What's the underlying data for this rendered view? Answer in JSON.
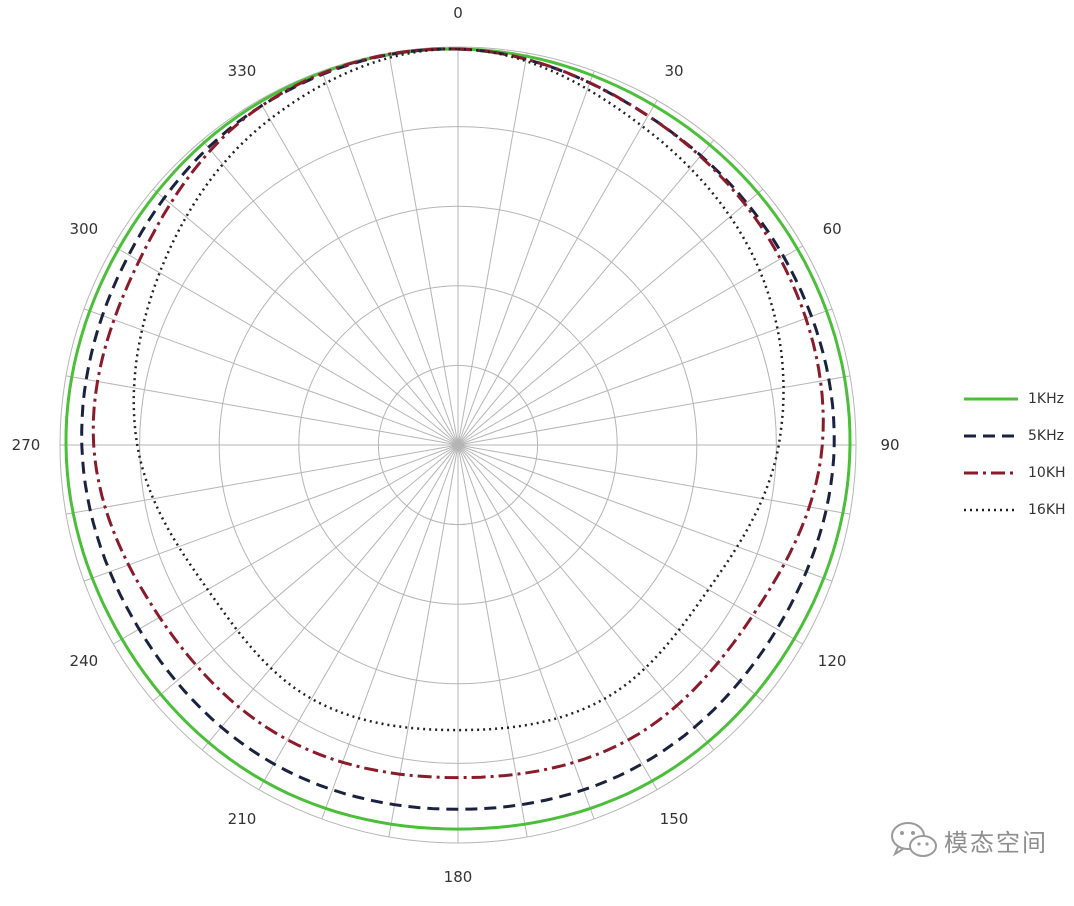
{
  "chart_data": {
    "type": "polar",
    "angle_ticks": [
      "0",
      "30",
      "60",
      "90",
      "120",
      "150",
      "180",
      "210",
      "240",
      "270",
      "300",
      "330"
    ],
    "angle_tick_values": [
      0,
      30,
      60,
      90,
      120,
      150,
      180,
      210,
      240,
      270,
      300,
      330
    ],
    "angle_step_grid": 10,
    "radial_rings": 5,
    "radial_range": [
      0,
      1
    ],
    "direction": "clockwise",
    "zero_at": "top",
    "grid": true,
    "legend_position": "right",
    "series": [
      {
        "name": "1KHz",
        "color": "#4cbf3a",
        "style": "solid",
        "angles": [
          0,
          30,
          60,
          90,
          120,
          150,
          180,
          210,
          240,
          270,
          300,
          330
        ],
        "r": [
          1.0,
          0.99,
          0.99,
          0.99,
          0.98,
          0.98,
          0.97,
          0.98,
          0.98,
          0.99,
          0.99,
          1.0
        ]
      },
      {
        "name": "5KHz",
        "color": "#1a2240",
        "style": "dashed",
        "angles": [
          0,
          30,
          60,
          90,
          120,
          150,
          180,
          210,
          240,
          270,
          300,
          330
        ],
        "r": [
          1.0,
          0.96,
          0.95,
          0.95,
          0.93,
          0.93,
          0.92,
          0.93,
          0.93,
          0.95,
          0.96,
          0.99
        ]
      },
      {
        "name": "10KH",
        "color": "#8b1a2b",
        "style": "dashdot",
        "angles": [
          0,
          30,
          60,
          90,
          120,
          150,
          180,
          210,
          240,
          270,
          300,
          330
        ],
        "r": [
          1.0,
          0.96,
          0.94,
          0.92,
          0.86,
          0.86,
          0.84,
          0.86,
          0.87,
          0.92,
          0.93,
          0.99
        ]
      },
      {
        "name": "16KH",
        "color": "#222222",
        "style": "dotted",
        "angles": [
          0,
          30,
          60,
          90,
          120,
          150,
          180,
          210,
          240,
          270,
          300,
          330
        ],
        "r": [
          1.0,
          0.93,
          0.88,
          0.81,
          0.73,
          0.74,
          0.72,
          0.74,
          0.73,
          0.81,
          0.87,
          0.95
        ]
      }
    ]
  },
  "watermark": {
    "text": "模态空间",
    "icon": "wechat-icon"
  }
}
